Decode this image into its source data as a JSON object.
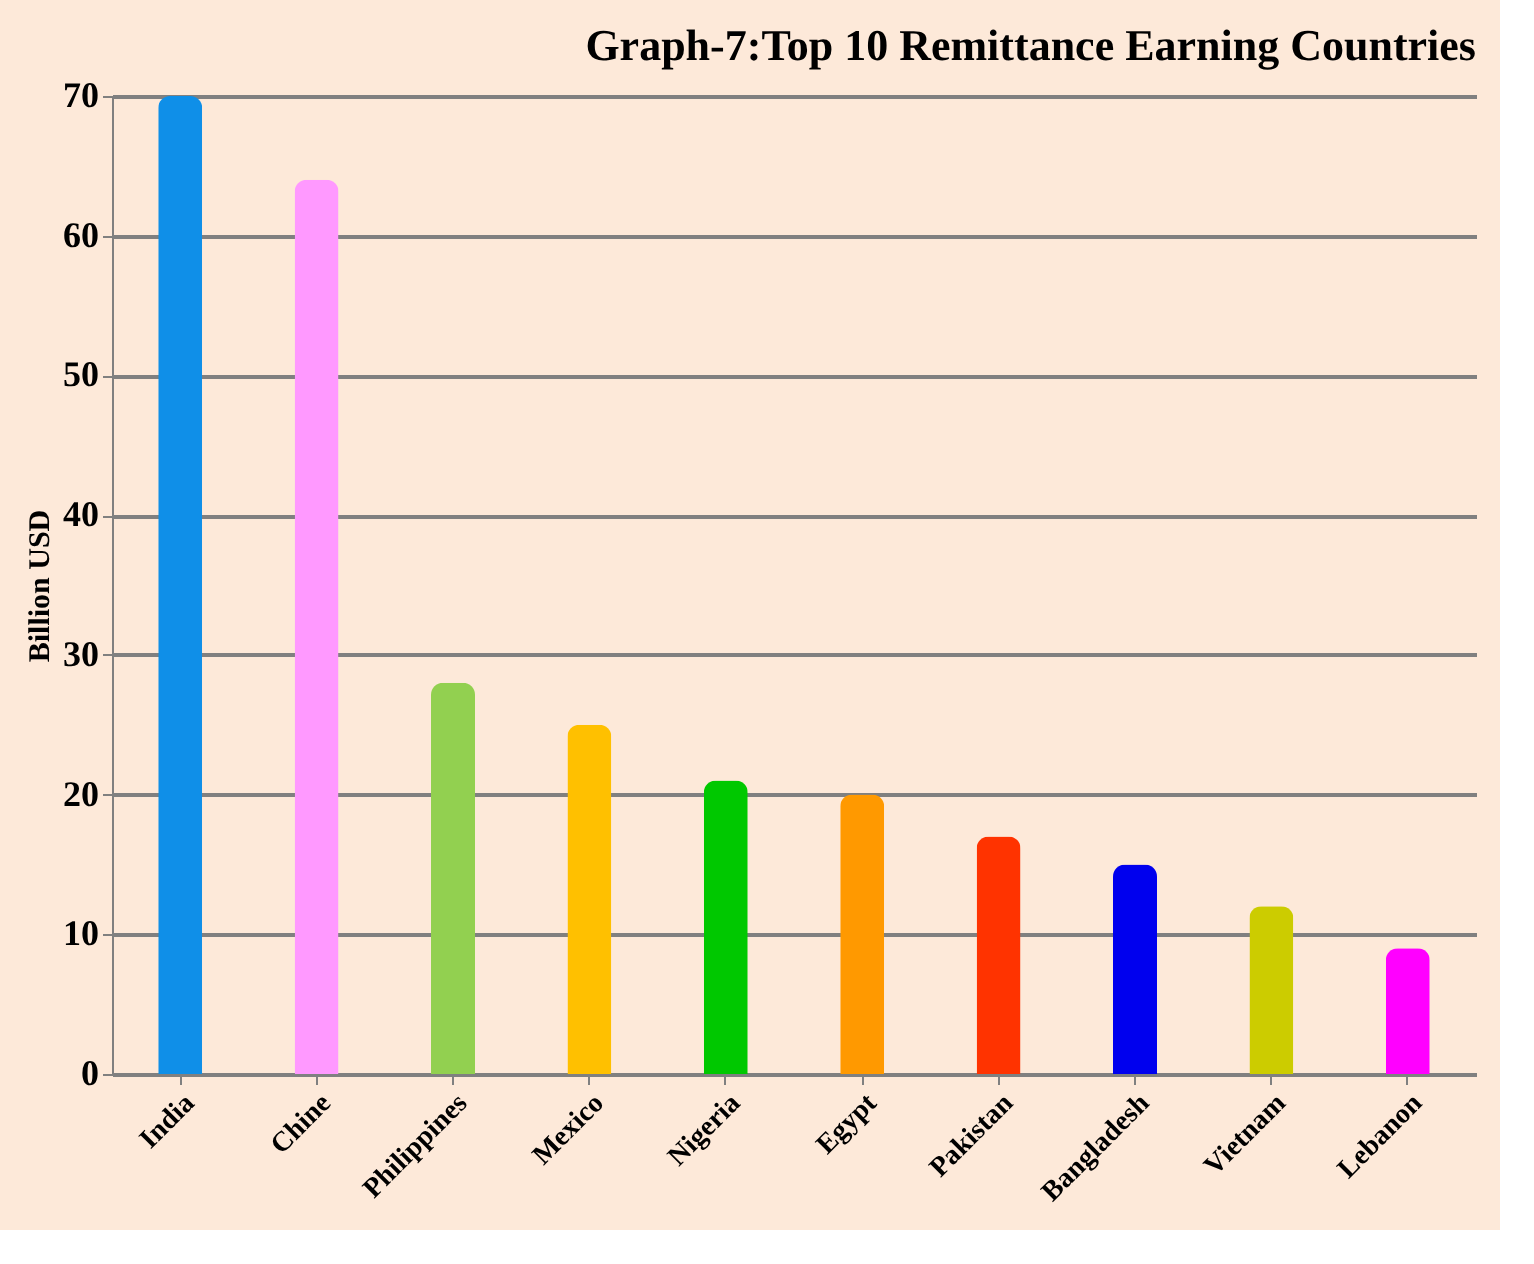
{
  "chart_data": {
    "type": "bar",
    "title": "Graph-7:Top 10 Remittance Earning Countries",
    "ylabel": "Billion USD",
    "categories": [
      "India",
      "Chine",
      "Philippines",
      "Mexico",
      "Nigeria",
      "Egypt",
      "Pakistan",
      "Bangladesh",
      "Vietnam",
      "Lebanon"
    ],
    "values": [
      70,
      64,
      28,
      25,
      21,
      20,
      17,
      15,
      12,
      9
    ],
    "colors": [
      "#0f8fe8",
      "#ff99ff",
      "#92d050",
      "#ffc000",
      "#00c800",
      "#ff9900",
      "#ff3300",
      "#0000ee",
      "#cccc00",
      "#ff00ff"
    ],
    "ylim": [
      0,
      70
    ],
    "yticks": [
      0,
      10,
      20,
      30,
      40,
      50,
      60,
      70
    ],
    "grid": "y"
  }
}
